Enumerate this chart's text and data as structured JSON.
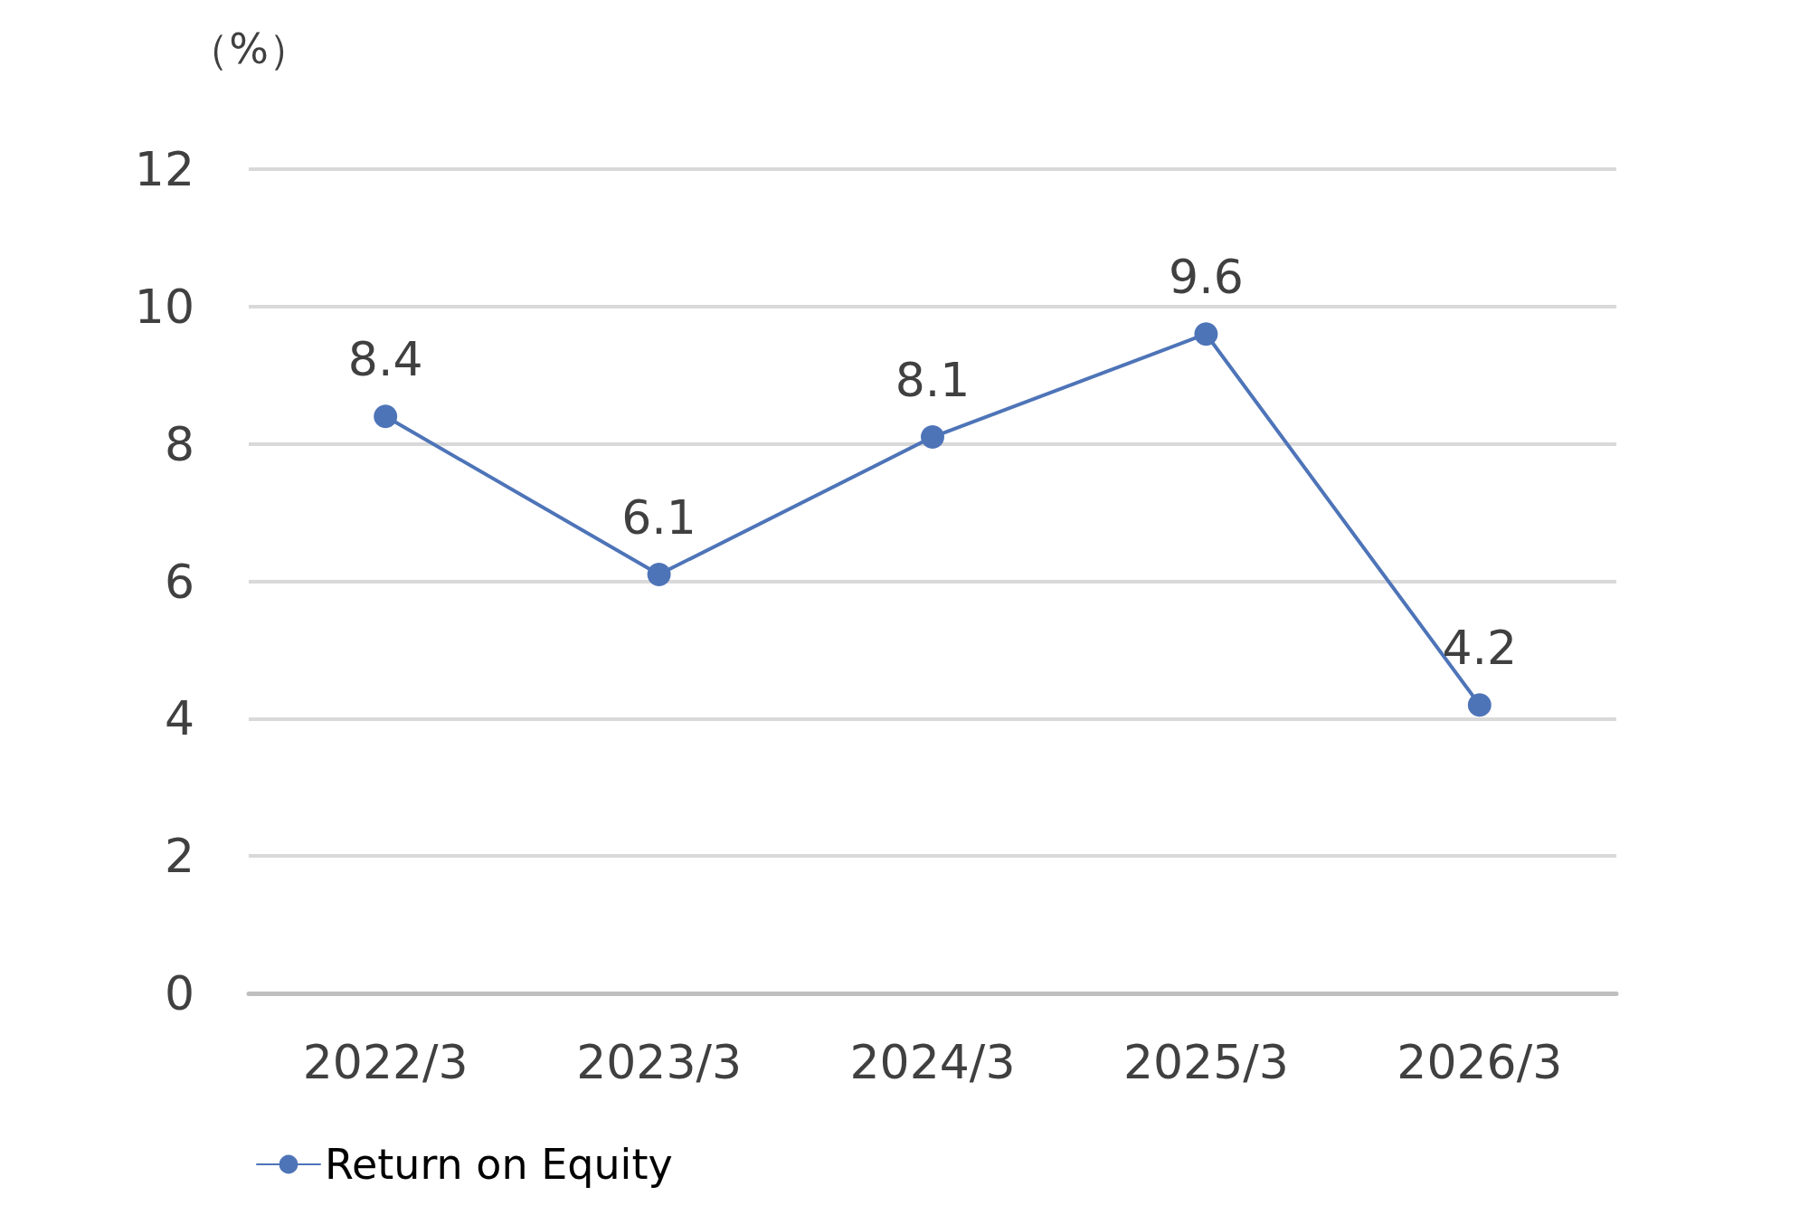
{
  "chart_data": {
    "type": "line",
    "ylabel": "（%）",
    "categories": [
      "2022/3",
      "2023/3",
      "2024/3",
      "2025/3",
      "2026/3"
    ],
    "series": [
      {
        "name": "Return on Equity",
        "color": "#4e74b8",
        "values": [
          8.4,
          6.1,
          8.1,
          9.6,
          4.2
        ]
      }
    ],
    "ylim": [
      0,
      12
    ],
    "yticks": [
      0,
      2,
      4,
      6,
      8,
      10,
      12
    ],
    "grid": "y",
    "legend": "bottom left",
    "marker": "circle",
    "line_style": "solid",
    "data_labels": true
  }
}
